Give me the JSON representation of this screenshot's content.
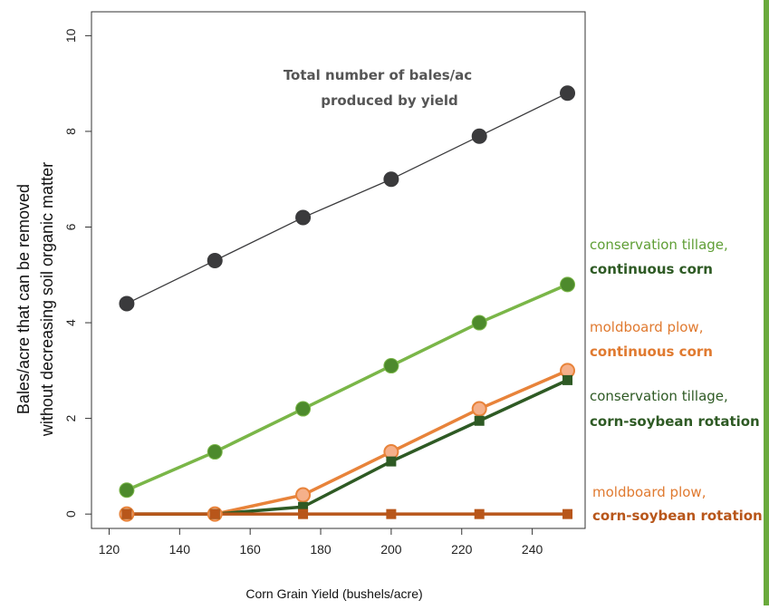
{
  "colors": {
    "total": "#3a3a3c",
    "ct_cc_line": "#7ab648",
    "ct_cc_marker": "#4d8a2c",
    "mp_cc_line": "#e8833a",
    "mp_cc_marker": "#f5b08a",
    "ct_cs": "#2e5a24",
    "mp_cs": "#b8561a",
    "ct_label": "#5f9e35",
    "ct_cs_label": "#2e5a24",
    "mp_label": "#e07a30"
  },
  "chart_data": {
    "type": "line",
    "x": [
      125,
      150,
      175,
      200,
      225,
      250
    ],
    "xlim": [
      115,
      255
    ],
    "ylim": [
      -0.3,
      10.5
    ],
    "xticks": [
      120,
      140,
      160,
      180,
      200,
      220,
      240
    ],
    "yticks": [
      0,
      2,
      4,
      6,
      8,
      10
    ],
    "xlabel": "Corn Grain Yield (bushels/acre)",
    "ylabel_line1": "Bales/acre  that can be removed",
    "ylabel_line2": "without decreasing soil organic matter",
    "series": [
      {
        "key": "total",
        "values": [
          4.4,
          5.3,
          6.2,
          7.0,
          7.9,
          8.8
        ],
        "marker": "circle"
      },
      {
        "key": "ct_cc",
        "values": [
          0.5,
          1.3,
          2.2,
          3.1,
          4.0,
          4.8
        ],
        "marker": "circle"
      },
      {
        "key": "mp_cc",
        "values": [
          0.0,
          0.0,
          0.4,
          1.3,
          2.2,
          3.0
        ],
        "marker": "circle"
      },
      {
        "key": "ct_cs",
        "values": [
          0.0,
          0.0,
          0.15,
          1.1,
          1.95,
          2.8
        ],
        "marker": "square"
      },
      {
        "key": "mp_cs",
        "values": [
          0.0,
          0.0,
          0.0,
          0.0,
          0.0,
          0.0
        ],
        "marker": "square"
      }
    ]
  },
  "annotations": {
    "total_line1": "Total number of bales/ac",
    "total_line2": "produced by yield",
    "ct_cc_line1": "conservation tillage,",
    "ct_cc_line2": "continuous corn",
    "mp_cc_line1": "moldboard plow,",
    "mp_cc_line2": "continuous corn",
    "ct_cs_line1": "conservation tillage,",
    "ct_cs_line2": "corn-soybean rotation",
    "mp_cs_line1": "moldboard plow,",
    "mp_cs_line2": "corn-soybean rotation"
  }
}
